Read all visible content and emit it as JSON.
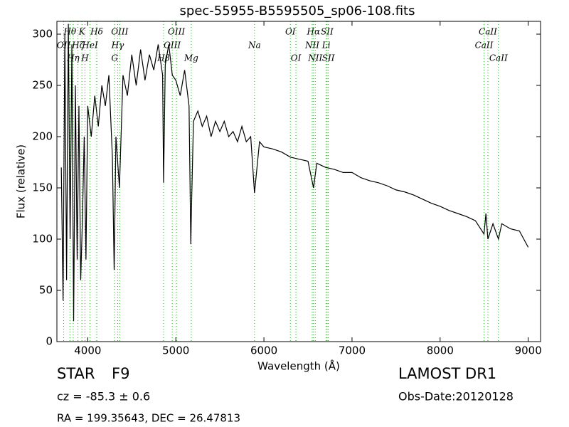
{
  "chart_data": {
    "type": "line",
    "title": "spec-55955-B5595505_sp06-108.fits",
    "x_label": "Wavelength (Å)",
    "y_label": "Flux (relative)",
    "color": "#000000",
    "line_color": "#2ca02c",
    "xlim": [
      3650,
      9140
    ],
    "ylim": [
      0,
      312.5
    ],
    "xticks": [
      4000,
      5000,
      6000,
      7000,
      8000,
      9000
    ],
    "yticks": [
      0,
      50,
      100,
      150,
      200,
      250,
      300
    ],
    "grid": false,
    "x": [
      3700,
      3720,
      3740,
      3760,
      3780,
      3800,
      3820,
      3840,
      3860,
      3880,
      3900,
      3920,
      3940,
      3960,
      3980,
      4000,
      4040,
      4080,
      4120,
      4160,
      4200,
      4240,
      4280,
      4300,
      4320,
      4360,
      4400,
      4450,
      4500,
      4550,
      4600,
      4650,
      4700,
      4750,
      4800,
      4850,
      4861,
      4880,
      4920,
      4960,
      5000,
      5050,
      5100,
      5150,
      5170,
      5175,
      5200,
      5250,
      5300,
      5350,
      5400,
      5450,
      5500,
      5550,
      5600,
      5650,
      5700,
      5750,
      5800,
      5850,
      5893,
      5950,
      6000,
      6100,
      6200,
      6300,
      6400,
      6500,
      6563,
      6600,
      6700,
      6800,
      6900,
      7000,
      7100,
      7200,
      7300,
      7400,
      7500,
      7600,
      7700,
      7800,
      7900,
      8000,
      8100,
      8200,
      8300,
      8400,
      8498,
      8520,
      8542,
      8600,
      8662,
      8700,
      8800,
      8900,
      9000
    ],
    "values": [
      170,
      40,
      300,
      60,
      310,
      100,
      290,
      20,
      250,
      80,
      230,
      60,
      120,
      200,
      80,
      230,
      200,
      240,
      210,
      250,
      230,
      260,
      180,
      70,
      200,
      150,
      260,
      240,
      280,
      250,
      285,
      255,
      280,
      265,
      290,
      260,
      155,
      270,
      290,
      260,
      255,
      240,
      265,
      230,
      95,
      120,
      215,
      225,
      210,
      220,
      200,
      215,
      205,
      215,
      200,
      205,
      195,
      210,
      195,
      200,
      145,
      195,
      190,
      188,
      185,
      180,
      178,
      176,
      150,
      174,
      170,
      168,
      165,
      165,
      160,
      157,
      155,
      152,
      148,
      146,
      143,
      139,
      135,
      132,
      128,
      125,
      122,
      118,
      105,
      125,
      100,
      115,
      100,
      115,
      110,
      108,
      92
    ],
    "lines": [
      {
        "label": "Hθ",
        "x": 3798
      },
      {
        "label": "OII",
        "x": 3727
      },
      {
        "label": "Hη",
        "x": 3835
      },
      {
        "label": "K",
        "x": 3934
      },
      {
        "label": "Hζ",
        "x": 3889
      },
      {
        "label": "H",
        "x": 3969
      },
      {
        "label": "Hδ",
        "x": 4102
      },
      {
        "label": "HeI",
        "x": 4026
      },
      {
        "label": "G",
        "x": 4305
      },
      {
        "label": "OIII",
        "x": 4363
      },
      {
        "label": "Hγ",
        "x": 4340
      },
      {
        "label": "Hβ",
        "x": 4861
      },
      {
        "label": "OIII",
        "x": 5007
      },
      {
        "label": "OIII",
        "x": 4959
      },
      {
        "label": "Mg",
        "x": 5175
      },
      {
        "label": "OI",
        "x": 6300
      },
      {
        "label": "Na",
        "x": 5893
      },
      {
        "label": "OI",
        "x": 6363
      },
      {
        "label": "Hα",
        "x": 6563
      },
      {
        "label": "NII",
        "x": 6548
      },
      {
        "label": "NII",
        "x": 6583
      },
      {
        "label": "SII",
        "x": 6717
      },
      {
        "label": "Li",
        "x": 6707
      },
      {
        "label": "SII",
        "x": 6731
      },
      {
        "label": "CaII",
        "x": 8542
      },
      {
        "label": "CaII",
        "x": 8498
      },
      {
        "label": "CaII",
        "x": 8662
      }
    ]
  },
  "info": {
    "class": "STAR",
    "subclass": "F9",
    "survey": "LAMOST DR1",
    "redshift": "cz = -85.3 ± 0.6",
    "obs_date": "Obs-Date:20120128",
    "coords": "RA = 199.35643, DEC = 26.47813"
  }
}
